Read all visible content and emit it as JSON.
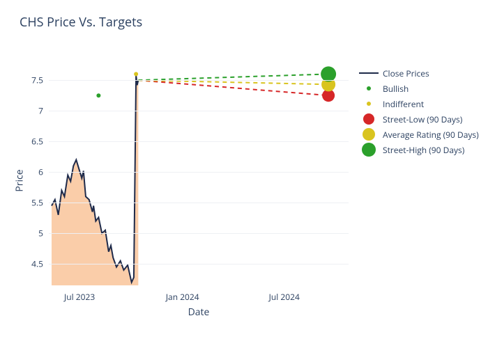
{
  "chart": {
    "type": "line+scatter",
    "title": "CHS Price Vs. Targets",
    "title_fontsize": 18,
    "title_color": "#2a3f5f",
    "background_color": "#ffffff",
    "plot_background_color": "#ffffff",
    "grid_color": "#eef0f4",
    "tick_fontsize": 12,
    "tick_color": "#2a3f5f",
    "label_fontsize": 14,
    "label_color": "#2a3f5f",
    "x": {
      "label": "Date",
      "range": [
        "2023-05-07",
        "2024-10-24"
      ],
      "ticks": [
        {
          "t": "2023-07-01",
          "label": "Jul 2023"
        },
        {
          "t": "2024-01-01",
          "label": "Jan 2024"
        },
        {
          "t": "2024-07-01",
          "label": "Jul 2024"
        }
      ]
    },
    "y": {
      "label": "Price",
      "range": [
        4.15,
        7.9
      ],
      "ticks": [
        4.5,
        5,
        5.5,
        6,
        6.5,
        7,
        7.5
      ]
    },
    "area_fill_color": "#f7b27b",
    "area_fill_opacity": 0.65,
    "close_line_color": "#1e2a4a",
    "close_line_width": 2,
    "close_prices": [
      {
        "t": "2023-05-12",
        "v": 5.45
      },
      {
        "t": "2023-05-18",
        "v": 5.55
      },
      {
        "t": "2023-05-24",
        "v": 5.3
      },
      {
        "t": "2023-05-30",
        "v": 5.7
      },
      {
        "t": "2023-06-04",
        "v": 5.6
      },
      {
        "t": "2023-06-10",
        "v": 5.95
      },
      {
        "t": "2023-06-15",
        "v": 5.85
      },
      {
        "t": "2023-06-20",
        "v": 6.1
      },
      {
        "t": "2023-06-25",
        "v": 6.2
      },
      {
        "t": "2023-06-30",
        "v": 6.05
      },
      {
        "t": "2023-07-05",
        "v": 5.9
      },
      {
        "t": "2023-07-08",
        "v": 6.02
      },
      {
        "t": "2023-07-12",
        "v": 5.6
      },
      {
        "t": "2023-07-18",
        "v": 5.55
      },
      {
        "t": "2023-07-24",
        "v": 5.35
      },
      {
        "t": "2023-07-26",
        "v": 5.45
      },
      {
        "t": "2023-07-30",
        "v": 5.2
      },
      {
        "t": "2023-08-04",
        "v": 5.26
      },
      {
        "t": "2023-08-10",
        "v": 5.0
      },
      {
        "t": "2023-08-16",
        "v": 5.05
      },
      {
        "t": "2023-08-22",
        "v": 4.7
      },
      {
        "t": "2023-08-26",
        "v": 4.8
      },
      {
        "t": "2023-08-30",
        "v": 4.6
      },
      {
        "t": "2023-09-05",
        "v": 4.45
      },
      {
        "t": "2023-09-12",
        "v": 4.55
      },
      {
        "t": "2023-09-18",
        "v": 4.4
      },
      {
        "t": "2023-09-25",
        "v": 4.48
      },
      {
        "t": "2023-10-02",
        "v": 4.2
      },
      {
        "t": "2023-10-06",
        "v": 4.28
      },
      {
        "t": "2023-10-10",
        "v": 7.58
      },
      {
        "t": "2023-10-12",
        "v": 7.42
      },
      {
        "t": "2023-10-14",
        "v": 7.5
      }
    ],
    "bullish_points": {
      "color": "#2ba02b",
      "size": 6,
      "points": [
        {
          "t": "2023-08-04",
          "v": 7.25
        }
      ]
    },
    "indifferent_points": {
      "color": "#d9c41f",
      "size": 6,
      "points": [
        {
          "t": "2023-10-10",
          "v": 7.6
        }
      ]
    },
    "targets": [
      {
        "label": "Street-Low (90 Days)",
        "color": "#d62728",
        "value": 7.25,
        "dash": "6,5",
        "marker_size": 18
      },
      {
        "label": "Average Rating (90 Days)",
        "color": "#d9c41f",
        "value": 7.43,
        "dash": "6,5",
        "marker_size": 20
      },
      {
        "label": "Street-High (90 Days)",
        "color": "#2ba02b",
        "value": 7.6,
        "dash": "6,5",
        "marker_size": 22
      }
    ],
    "target_line_start": {
      "t": "2023-10-14",
      "v": 7.5
    },
    "target_line_end_t": "2024-09-18",
    "legend": [
      {
        "type": "line",
        "color": "#1e2a4a",
        "label": "Close Prices"
      },
      {
        "type": "dot",
        "color": "#2ba02b",
        "size": 6,
        "label": "Bullish"
      },
      {
        "type": "dot",
        "color": "#d9c41f",
        "size": 6,
        "label": "Indifferent"
      },
      {
        "type": "dot",
        "color": "#d62728",
        "size": 16,
        "label": "Street-Low (90 Days)"
      },
      {
        "type": "dot",
        "color": "#d9c41f",
        "size": 18,
        "label": "Average Rating (90 Days)"
      },
      {
        "type": "dot",
        "color": "#2ba02b",
        "size": 20,
        "label": "Street-High (90 Days)"
      }
    ]
  }
}
